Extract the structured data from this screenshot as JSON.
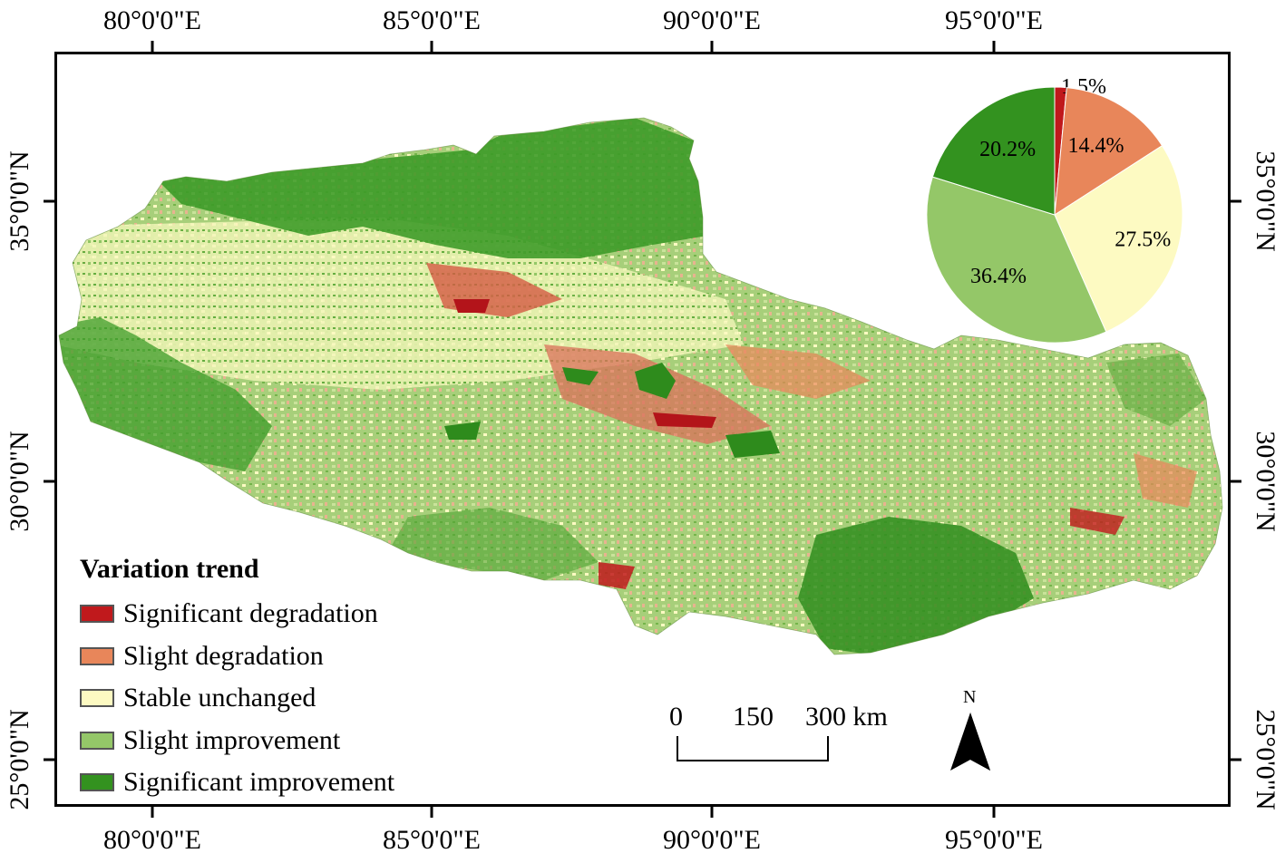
{
  "axes": {
    "lon_labels": [
      "80°0'0\"E",
      "85°0'0\"E",
      "90°0'0\"E",
      "95°0'0\"E"
    ],
    "lat_labels": [
      "35°0'0\"N",
      "30°0'0\"N",
      "25°0'0\"N"
    ]
  },
  "legend": {
    "title": "Variation trend",
    "items": [
      {
        "label": "Significant degradation",
        "color": "#c0191c"
      },
      {
        "label": "Slight degradation",
        "color": "#e8865a"
      },
      {
        "label": "Stable unchanged",
        "color": "#fdfac2"
      },
      {
        "label": "Slight improvement",
        "color": "#94c768"
      },
      {
        "label": "Significant improvement",
        "color": "#33921f"
      }
    ]
  },
  "chart_data": {
    "type": "pie",
    "slices": [
      {
        "category": "Significant degradation",
        "value": 1.5,
        "label": "1.5%",
        "color": "#c0191c"
      },
      {
        "category": "Slight degradation",
        "value": 14.4,
        "label": "14.4%",
        "color": "#e8865a"
      },
      {
        "category": "Stable unchanged",
        "value": 27.5,
        "label": "27.5%",
        "color": "#fdfac2"
      },
      {
        "category": "Slight improvement",
        "value": 36.4,
        "label": "36.4%",
        "color": "#94c768"
      },
      {
        "category": "Significant improvement",
        "value": 20.2,
        "label": "20.2%",
        "color": "#33921f"
      }
    ]
  },
  "scalebar": {
    "ticks": [
      "0",
      "150",
      "300 km"
    ]
  },
  "north_arrow": {
    "label": "N"
  }
}
